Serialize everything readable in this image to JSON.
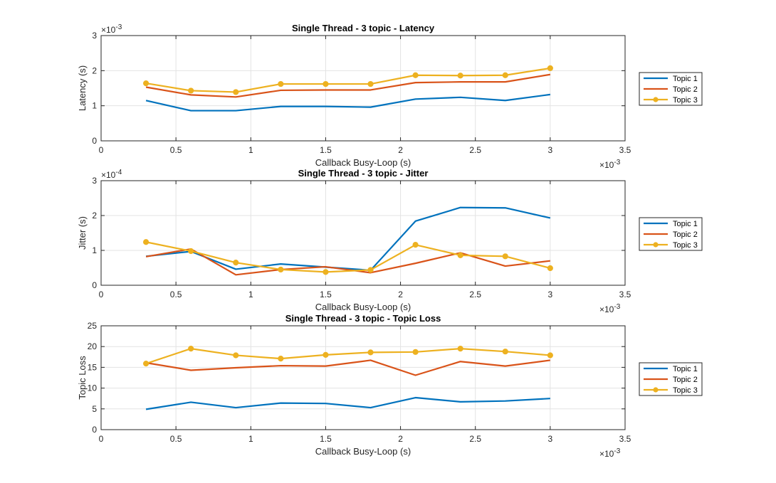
{
  "chart_data": [
    {
      "type": "line",
      "title": "Single Thread - 3 topic - Latency",
      "xlabel": "Callback Busy-Loop (s)",
      "ylabel": "Latency (s)",
      "xlim": [
        0,
        0.0035
      ],
      "ylim": [
        0,
        0.003
      ],
      "x_ticks": [
        "0",
        "0.5",
        "1",
        "1.5",
        "2",
        "2.5",
        "3",
        "3.5"
      ],
      "y_ticks": [
        "0",
        "1",
        "2",
        "3"
      ],
      "x_multiplier": "×10",
      "x_multiplier_exp": "-3",
      "y_multiplier": "×10",
      "y_multiplier_exp": "-3",
      "grid": true,
      "legend": "right",
      "x": [
        0.0003,
        0.0006,
        0.0009,
        0.0012,
        0.0015,
        0.0018,
        0.0021,
        0.0024,
        0.0027,
        0.003
      ],
      "series": [
        {
          "name": "Topic 1",
          "color": "#0072BD",
          "marker": false,
          "values": [
            0.00115,
            0.00086,
            0.00086,
            0.00098,
            0.00098,
            0.00096,
            0.00119,
            0.00124,
            0.00115,
            0.00132
          ]
        },
        {
          "name": "Topic 2",
          "color": "#D95319",
          "marker": false,
          "values": [
            0.00153,
            0.00131,
            0.00125,
            0.00144,
            0.00145,
            0.00145,
            0.00166,
            0.00168,
            0.00168,
            0.00189
          ]
        },
        {
          "name": "Topic 3",
          "color": "#EDB120",
          "marker": true,
          "values": [
            0.00164,
            0.00143,
            0.00139,
            0.00162,
            0.00162,
            0.00162,
            0.00187,
            0.00186,
            0.00187,
            0.00207
          ]
        }
      ]
    },
    {
      "type": "line",
      "title": "Single Thread - 3 topic - Jitter",
      "xlabel": "Callback Busy-Loop (s)",
      "ylabel": "Jitter (s)",
      "xlim": [
        0,
        0.0035
      ],
      "ylim": [
        0,
        0.0003
      ],
      "x_ticks": [
        "0",
        "0.5",
        "1",
        "1.5",
        "2",
        "2.5",
        "3",
        "3.5"
      ],
      "y_ticks": [
        "0",
        "1",
        "2",
        "3"
      ],
      "x_multiplier": "×10",
      "x_multiplier_exp": "-3",
      "y_multiplier": "×10",
      "y_multiplier_exp": "-4",
      "grid": true,
      "legend": "right",
      "x": [
        0.0003,
        0.0006,
        0.0009,
        0.0012,
        0.0015,
        0.0018,
        0.0021,
        0.0024,
        0.0027,
        0.003
      ],
      "series": [
        {
          "name": "Topic 1",
          "color": "#0072BD",
          "marker": false,
          "values": [
            8.3e-05,
            9.7e-05,
            4.6e-05,
            6.1e-05,
            5.2e-05,
            4.3e-05,
            0.000184,
            0.000223,
            0.000222,
            0.000193
          ]
        },
        {
          "name": "Topic 2",
          "color": "#D95319",
          "marker": false,
          "values": [
            8.2e-05,
            0.000104,
            3e-05,
            4.5e-05,
            5.3e-05,
            3.6e-05,
            6.3e-05,
            9.3e-05,
            5.5e-05,
            7e-05
          ]
        },
        {
          "name": "Topic 3",
          "color": "#EDB120",
          "marker": true,
          "values": [
            0.000124,
            9.8e-05,
            6.5e-05,
            4.5e-05,
            3.8e-05,
            4.4e-05,
            0.000116,
            8.6e-05,
            8.3e-05,
            4.9e-05
          ]
        }
      ]
    },
    {
      "type": "line",
      "title": "Single Thread - 3 topic - Topic Loss",
      "xlabel": "Callback Busy-Loop (s)",
      "ylabel": "Topic Loss",
      "xlim": [
        0,
        0.0035
      ],
      "ylim": [
        0,
        25
      ],
      "x_ticks": [
        "0",
        "0.5",
        "1",
        "1.5",
        "2",
        "2.5",
        "3",
        "3.5"
      ],
      "y_ticks": [
        "0",
        "5",
        "10",
        "15",
        "20",
        "25"
      ],
      "x_multiplier": "×10",
      "x_multiplier_exp": "-3",
      "y_multiplier": "",
      "y_multiplier_exp": "",
      "grid": true,
      "legend": "right",
      "x": [
        0.0003,
        0.0006,
        0.0009,
        0.0012,
        0.0015,
        0.0018,
        0.0021,
        0.0024,
        0.0027,
        0.003
      ],
      "series": [
        {
          "name": "Topic 1",
          "color": "#0072BD",
          "marker": false,
          "values": [
            4.9,
            6.6,
            5.3,
            6.4,
            6.3,
            5.3,
            7.7,
            6.7,
            6.9,
            7.5
          ]
        },
        {
          "name": "Topic 2",
          "color": "#D95319",
          "marker": false,
          "values": [
            16.1,
            14.3,
            14.9,
            15.4,
            15.3,
            16.7,
            13.1,
            16.4,
            15.3,
            16.7
          ]
        },
        {
          "name": "Topic 3",
          "color": "#EDB120",
          "marker": true,
          "values": [
            15.9,
            19.5,
            17.9,
            17.1,
            18.0,
            18.6,
            18.7,
            19.5,
            18.8,
            17.9
          ]
        }
      ]
    }
  ]
}
